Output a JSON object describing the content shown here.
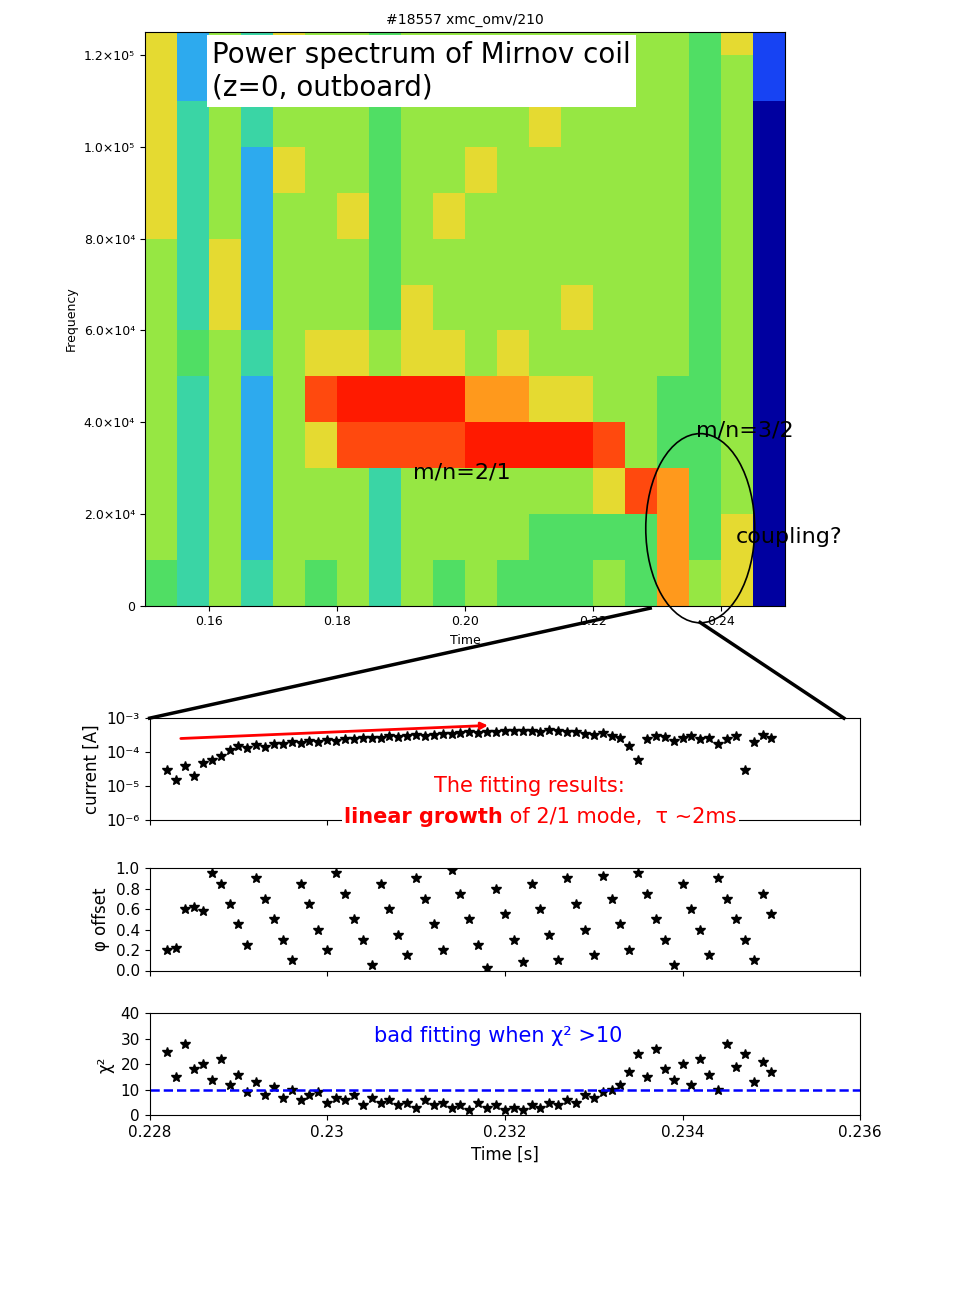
{
  "chart_data": [
    {
      "type": "heatmap",
      "title": "#18557 xmc_omv/210",
      "x_label": "Time",
      "y_label": "Frequency",
      "x_edges": [
        0.15,
        0.155,
        0.16,
        0.165,
        0.17,
        0.175,
        0.18,
        0.185,
        0.19,
        0.195,
        0.2,
        0.205,
        0.21,
        0.215,
        0.22,
        0.225,
        0.23,
        0.235,
        0.24,
        0.245,
        0.25
      ],
      "y_edges": [
        0,
        10000,
        20000,
        30000,
        40000,
        50000,
        60000,
        70000,
        80000,
        90000,
        100000,
        110000,
        120000,
        130000
      ],
      "cells": [
        [
          4,
          3,
          5,
          3,
          5,
          4,
          5,
          3,
          5,
          4,
          5,
          4,
          4,
          4,
          5,
          4,
          7,
          5,
          6,
          0
        ],
        [
          5,
          3,
          5,
          2,
          5,
          5,
          5,
          3,
          5,
          5,
          5,
          5,
          4,
          4,
          4,
          4,
          7,
          4,
          6,
          0
        ],
        [
          5,
          3,
          5,
          2,
          5,
          5,
          5,
          3,
          5,
          5,
          5,
          5,
          5,
          5,
          6,
          8,
          7,
          4,
          5,
          0
        ],
        [
          5,
          3,
          5,
          2,
          5,
          6,
          8,
          8,
          8,
          8,
          9,
          9,
          9,
          9,
          8,
          5,
          4,
          4,
          5,
          0
        ],
        [
          5,
          3,
          5,
          2,
          5,
          8,
          9,
          9,
          9,
          9,
          7,
          7,
          6,
          6,
          5,
          5,
          4,
          4,
          5,
          0
        ],
        [
          5,
          4,
          5,
          3,
          5,
          6,
          6,
          5,
          6,
          6,
          5,
          6,
          5,
          5,
          5,
          5,
          5,
          4,
          5,
          0
        ],
        [
          5,
          3,
          6,
          2,
          5,
          5,
          5,
          4,
          6,
          5,
          5,
          5,
          5,
          6,
          5,
          5,
          5,
          4,
          5,
          0
        ],
        [
          5,
          3,
          6,
          2,
          5,
          5,
          5,
          4,
          5,
          5,
          5,
          5,
          5,
          5,
          5,
          5,
          5,
          4,
          5,
          0
        ],
        [
          6,
          3,
          5,
          2,
          5,
          5,
          6,
          4,
          5,
          6,
          5,
          5,
          5,
          5,
          5,
          5,
          5,
          4,
          5,
          0
        ],
        [
          6,
          3,
          5,
          2,
          6,
          5,
          5,
          4,
          5,
          5,
          6,
          5,
          5,
          5,
          5,
          5,
          5,
          4,
          5,
          0
        ],
        [
          6,
          3,
          5,
          3,
          5,
          5,
          5,
          4,
          5,
          5,
          5,
          5,
          6,
          5,
          5,
          5,
          5,
          4,
          5,
          0
        ],
        [
          6,
          2,
          5,
          3,
          5,
          5,
          5,
          4,
          5,
          5,
          5,
          5,
          5,
          5,
          5,
          5,
          5,
          4,
          5,
          1
        ],
        [
          6,
          2,
          5,
          3,
          6,
          5,
          5,
          4,
          5,
          5,
          5,
          5,
          5,
          5,
          5,
          5,
          5,
          4,
          6,
          1
        ]
      ],
      "zlim": [
        0,
        9
      ],
      "xlim": [
        0.15,
        0.25
      ],
      "xticks": [
        0.16,
        0.18,
        {
          "value": 0.2,
          "label": "0.20"
        },
        0.22,
        0.24
      ],
      "ylim": [
        0,
        125000
      ],
      "yticks": [
        0,
        {
          "value": 20000,
          "label": "2.0×10⁴"
        },
        {
          "value": 40000,
          "label": "4.0×10⁴"
        },
        {
          "value": 60000,
          "label": "6.0×10⁴"
        },
        {
          "value": 80000,
          "label": "8.0×10⁴"
        },
        {
          "value": 100000,
          "label": "1.0×10⁵"
        },
        {
          "value": 120000,
          "label": "1.2×10⁵"
        }
      ],
      "annotations": [
        "Power spectrum of Mirnov coil\n(z=0, outboard)",
        "m/n=3/2",
        "m/n=2/1",
        "coupling?"
      ]
    },
    {
      "type": "scatter",
      "y_label": "current [A]",
      "log": "y",
      "marker": "*",
      "color": "#000000",
      "tick_labels": "y",
      "x": [
        0.2282,
        0.2283,
        0.2284,
        0.2285,
        0.2286,
        0.2287,
        0.2288,
        0.2289,
        0.229,
        0.2291,
        0.2292,
        0.2293,
        0.2294,
        0.2295,
        0.2296,
        0.2297,
        0.2298,
        0.2299,
        0.23,
        0.2301,
        0.2302,
        0.2303,
        0.2304,
        0.2305,
        0.2306,
        0.2307,
        0.2308,
        0.2309,
        0.231,
        0.2311,
        0.2312,
        0.2313,
        0.2314,
        0.2315,
        0.2316,
        0.2317,
        0.2318,
        0.2319,
        0.232,
        0.2321,
        0.2322,
        0.2323,
        0.2324,
        0.2325,
        0.2326,
        0.2327,
        0.2328,
        0.2329,
        0.233,
        0.2331,
        0.2332,
        0.2333,
        0.2334,
        0.2335,
        0.2336,
        0.2337,
        0.2338,
        0.2339,
        0.234,
        0.2341,
        0.2342,
        0.2343,
        0.2344,
        0.2345,
        0.2346,
        0.2347,
        0.2348,
        0.2349,
        0.235
      ],
      "values": [
        3e-05,
        1.5e-05,
        4e-05,
        2e-05,
        5e-05,
        6e-05,
        8e-05,
        0.00012,
        0.00015,
        0.00013,
        0.00016,
        0.00014,
        0.00018,
        0.00017,
        0.0002,
        0.00019,
        0.00021,
        0.0002,
        0.00023,
        0.00022,
        0.00025,
        0.00024,
        0.00026,
        0.00027,
        0.00026,
        0.00029,
        0.00028,
        0.0003,
        0.00032,
        0.00031,
        0.00033,
        0.00035,
        0.00034,
        0.00036,
        0.00038,
        0.00037,
        0.00039,
        0.0004,
        0.00042,
        0.00041,
        0.00043,
        0.00042,
        0.0004,
        0.00044,
        0.00041,
        0.00038,
        0.00039,
        0.00035,
        0.00033,
        0.00036,
        0.0003,
        0.00026,
        0.00015,
        6e-05,
        0.00025,
        0.0003,
        0.00028,
        0.00022,
        0.00026,
        0.0003,
        0.00024,
        0.00027,
        0.00018,
        0.00025,
        0.0003,
        3e-05,
        0.0002,
        0.00032,
        0.00026
      ],
      "xlim": [
        0.228,
        0.236
      ],
      "xticks": [
        0.228,
        0.23,
        0.232,
        0.234,
        0.236
      ],
      "ylim": [
        1e-06,
        0.001
      ],
      "yticks": [
        {
          "value": 1e-06,
          "label": "10⁻⁶"
        },
        {
          "value": 1e-05,
          "label": "10⁻⁵"
        },
        {
          "value": 0.0001,
          "label": "10⁻⁴"
        },
        {
          "value": 0.001,
          "label": "10⁻³"
        }
      ],
      "annotations": [
        "The fitting results:",
        "linear growth",
        " of 2/1 mode,  τ ~2ms"
      ]
    },
    {
      "type": "scatter",
      "y_label": "φ offset",
      "marker": "*",
      "color": "#000000",
      "tick_labels": "y",
      "x": [
        0.2282,
        0.2283,
        0.2284,
        0.2285,
        0.2286,
        0.2287,
        0.2288,
        0.2289,
        0.229,
        0.2291,
        0.2292,
        0.2293,
        0.2294,
        0.2295,
        0.2296,
        0.2297,
        0.2298,
        0.2299,
        0.23,
        0.2301,
        0.2302,
        0.2303,
        0.2304,
        0.2305,
        0.2306,
        0.2307,
        0.2308,
        0.2309,
        0.231,
        0.2311,
        0.2312,
        0.2313,
        0.2314,
        0.2315,
        0.2316,
        0.2317,
        0.2318,
        0.2319,
        0.232,
        0.2321,
        0.2322,
        0.2323,
        0.2324,
        0.2325,
        0.2326,
        0.2327,
        0.2328,
        0.2329,
        0.233,
        0.2331,
        0.2332,
        0.2333,
        0.2334,
        0.2335,
        0.2336,
        0.2337,
        0.2338,
        0.2339,
        0.234,
        0.2341,
        0.2342,
        0.2343,
        0.2344,
        0.2345,
        0.2346,
        0.2347,
        0.2348,
        0.2349,
        0.235
      ],
      "values": [
        0.2,
        0.22,
        0.6,
        0.62,
        0.58,
        0.95,
        0.85,
        0.65,
        0.45,
        0.25,
        0.9,
        0.7,
        0.5,
        0.3,
        0.1,
        0.85,
        0.65,
        0.4,
        0.2,
        0.95,
        0.75,
        0.5,
        0.3,
        0.05,
        0.85,
        0.6,
        0.35,
        0.15,
        0.9,
        0.7,
        0.45,
        0.2,
        0.98,
        0.75,
        0.5,
        0.25,
        0.02,
        0.8,
        0.55,
        0.3,
        0.08,
        0.85,
        0.6,
        0.35,
        0.1,
        0.9,
        0.65,
        0.4,
        0.15,
        0.92,
        0.7,
        0.45,
        0.2,
        0.95,
        0.75,
        0.5,
        0.3,
        0.05,
        0.85,
        0.6,
        0.4,
        0.15,
        0.9,
        0.7,
        0.5,
        0.3,
        0.1,
        0.75,
        0.55
      ],
      "xlim": [
        0.228,
        0.236
      ],
      "xticks": [
        0.228,
        0.23,
        0.232,
        0.234,
        0.236
      ],
      "ylim": [
        0,
        1
      ],
      "yticks": [
        {
          "value": 0,
          "label": "0.0"
        },
        0.2,
        0.4,
        0.6,
        0.8,
        {
          "value": 1,
          "label": "1.0"
        }
      ]
    },
    {
      "type": "scatter",
      "y_label": "χ²",
      "x_label": "Time [s]",
      "marker": "*",
      "color": "#000000",
      "x": [
        0.2282,
        0.2283,
        0.2284,
        0.2285,
        0.2286,
        0.2287,
        0.2288,
        0.2289,
        0.229,
        0.2291,
        0.2292,
        0.2293,
        0.2294,
        0.2295,
        0.2296,
        0.2297,
        0.2298,
        0.2299,
        0.23,
        0.2301,
        0.2302,
        0.2303,
        0.2304,
        0.2305,
        0.2306,
        0.2307,
        0.2308,
        0.2309,
        0.231,
        0.2311,
        0.2312,
        0.2313,
        0.2314,
        0.2315,
        0.2316,
        0.2317,
        0.2318,
        0.2319,
        0.232,
        0.2321,
        0.2322,
        0.2323,
        0.2324,
        0.2325,
        0.2326,
        0.2327,
        0.2328,
        0.2329,
        0.233,
        0.2331,
        0.2332,
        0.2333,
        0.2334,
        0.2335,
        0.2336,
        0.2337,
        0.2338,
        0.2339,
        0.234,
        0.2341,
        0.2342,
        0.2343,
        0.2344,
        0.2345,
        0.2346,
        0.2347,
        0.2348,
        0.2349,
        0.235
      ],
      "values": [
        25,
        15,
        28,
        18,
        20,
        14,
        22,
        12,
        16,
        9,
        13,
        8,
        11,
        7,
        10,
        6,
        8,
        9,
        5,
        7,
        6,
        8,
        4,
        7,
        5,
        6,
        4,
        5,
        3,
        6,
        4,
        5,
        3,
        4,
        2,
        5,
        3,
        4,
        2,
        3,
        2,
        4,
        3,
        5,
        4,
        6,
        5,
        8,
        7,
        9,
        10,
        12,
        17,
        24,
        15,
        26,
        18,
        14,
        20,
        12,
        22,
        16,
        10,
        28,
        19,
        24,
        13,
        21,
        17
      ],
      "threshold": 10,
      "xlim": [
        0.228,
        0.236
      ],
      "xticks": [
        0.228,
        0.23,
        0.232,
        0.234,
        0.236
      ],
      "ylim": [
        0,
        40
      ],
      "yticks": [
        0,
        10,
        20,
        30,
        40
      ],
      "annotations": [
        "bad fitting when χ² >10"
      ]
    }
  ]
}
